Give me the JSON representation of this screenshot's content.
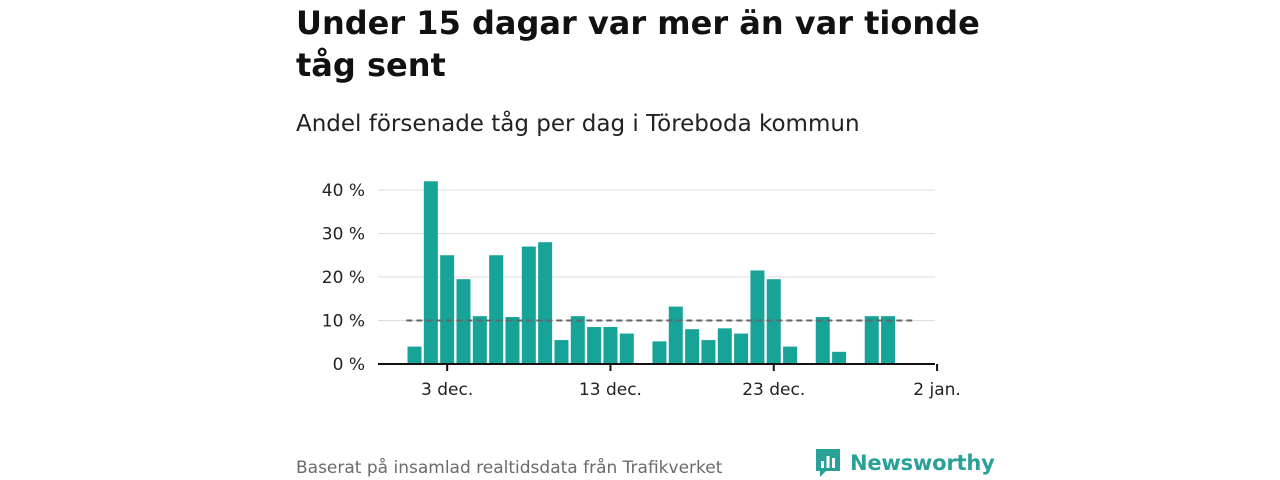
{
  "header": {
    "title": "Under 15 dagar var mer än var tionde tåg sent",
    "subtitle": "Andel försenade tåg per dag i Töreboda kommun"
  },
  "footer": {
    "source": "Baserat på insamlad realtidsdata från Trafikverket",
    "brand": "Newsworthy"
  },
  "colors": {
    "bar": "#17a398",
    "reference_line": "#666666",
    "grid": "#dddddd",
    "brand": "#2aa198"
  },
  "chart_data": {
    "type": "bar",
    "title": "Under 15 dagar var mer än var tionde tåg sent",
    "subtitle": "Andel försenade tåg per dag i Töreboda kommun",
    "xlabel": "",
    "ylabel": "",
    "x_axis": {
      "type": "date",
      "start": "2024-12-01",
      "end": "2025-01-02",
      "ticks": [
        {
          "date": "2024-12-03",
          "label": "3 dec."
        },
        {
          "date": "2024-12-13",
          "label": "13 dec."
        },
        {
          "date": "2024-12-23",
          "label": "23 dec."
        },
        {
          "date": "2025-01-02",
          "label": "2 jan."
        }
      ]
    },
    "y_axis": {
      "ylim": [
        0,
        40
      ],
      "ticks": [
        {
          "value": 0,
          "label": "0 %"
        },
        {
          "value": 10,
          "label": "10 %"
        },
        {
          "value": 20,
          "label": "20 %"
        },
        {
          "value": 30,
          "label": "30 %"
        },
        {
          "value": 40,
          "label": "40 %"
        }
      ]
    },
    "grid": true,
    "reference_line": {
      "value": 10,
      "start": "2024-12-01",
      "end": "2024-12-31",
      "style": "dashed"
    },
    "points": [
      {
        "date": "2024-12-01",
        "value": 4
      },
      {
        "date": "2024-12-02",
        "value": 42
      },
      {
        "date": "2024-12-03",
        "value": 25
      },
      {
        "date": "2024-12-04",
        "value": 19.5
      },
      {
        "date": "2024-12-05",
        "value": 11
      },
      {
        "date": "2024-12-06",
        "value": 25
      },
      {
        "date": "2024-12-07",
        "value": 10.8
      },
      {
        "date": "2024-12-08",
        "value": 27
      },
      {
        "date": "2024-12-09",
        "value": 28
      },
      {
        "date": "2024-12-10",
        "value": 5.5
      },
      {
        "date": "2024-12-11",
        "value": 11
      },
      {
        "date": "2024-12-12",
        "value": 8.5
      },
      {
        "date": "2024-12-13",
        "value": 8.5
      },
      {
        "date": "2024-12-14",
        "value": 7
      },
      {
        "date": "2024-12-16",
        "value": 5.2
      },
      {
        "date": "2024-12-17",
        "value": 13.2
      },
      {
        "date": "2024-12-18",
        "value": 8
      },
      {
        "date": "2024-12-19",
        "value": 5.5
      },
      {
        "date": "2024-12-20",
        "value": 8.2
      },
      {
        "date": "2024-12-21",
        "value": 7
      },
      {
        "date": "2024-12-22",
        "value": 21.5
      },
      {
        "date": "2024-12-23",
        "value": 19.5
      },
      {
        "date": "2024-12-24",
        "value": 4
      },
      {
        "date": "2024-12-26",
        "value": 10.8
      },
      {
        "date": "2024-12-27",
        "value": 2.8
      },
      {
        "date": "2024-12-29",
        "value": 11
      },
      {
        "date": "2024-12-30",
        "value": 11
      }
    ]
  }
}
